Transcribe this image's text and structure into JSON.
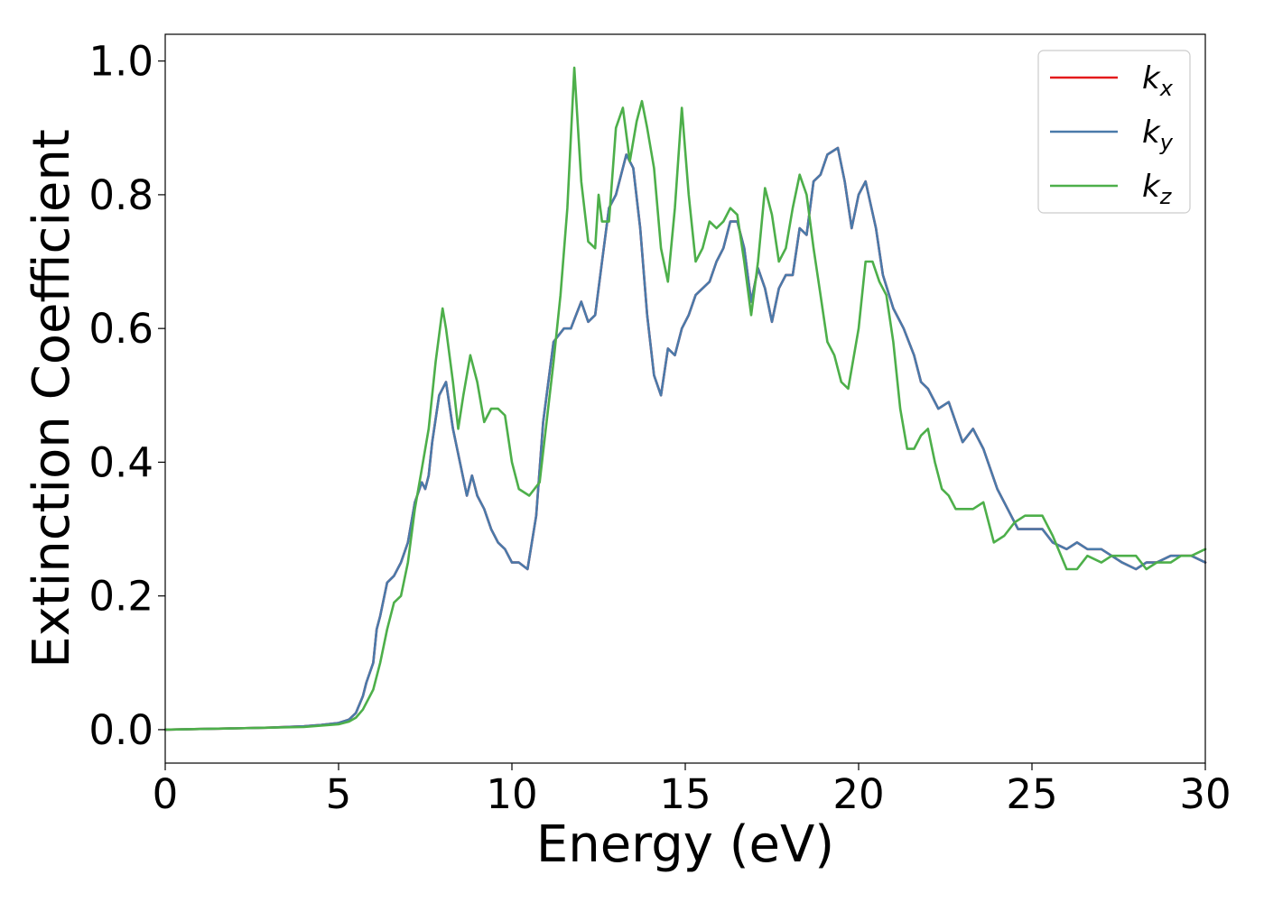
{
  "chart_data": {
    "type": "line",
    "title": "",
    "xlabel": "Energy (eV)",
    "ylabel": "Extinction Coefficient",
    "xlim": [
      0,
      30
    ],
    "ylim": [
      -0.05,
      1.04
    ],
    "xticks": [
      0,
      5,
      10,
      15,
      20,
      25,
      30
    ],
    "xtick_labels": [
      "0",
      "5",
      "10",
      "15",
      "20",
      "25",
      "30"
    ],
    "yticks": [
      0.0,
      0.2,
      0.4,
      0.6,
      0.8,
      1.0
    ],
    "ytick_labels": [
      "0.0",
      "0.2",
      "0.4",
      "0.6",
      "0.8",
      "1.0"
    ],
    "grid": false,
    "legend_position": "top-right",
    "series": [
      {
        "name": "k_x",
        "label_main": "k",
        "label_sub": "x",
        "color": "#e41a1c",
        "x": [
          0,
          1,
          2,
          3,
          4,
          4.5,
          5,
          5.3,
          5.5,
          5.7,
          5.8,
          6.0,
          6.1,
          6.2,
          6.4,
          6.6,
          6.8,
          7.0,
          7.2,
          7.4,
          7.5,
          7.6,
          7.7,
          7.9,
          8.1,
          8.3,
          8.5,
          8.7,
          8.85,
          9.0,
          9.2,
          9.4,
          9.6,
          9.8,
          10.0,
          10.2,
          10.45,
          10.7,
          10.9,
          11.2,
          11.5,
          11.7,
          11.85,
          12.0,
          12.2,
          12.4,
          12.6,
          12.8,
          13.0,
          13.3,
          13.5,
          13.7,
          13.9,
          14.1,
          14.3,
          14.5,
          14.7,
          14.9,
          15.1,
          15.3,
          15.5,
          15.7,
          15.9,
          16.1,
          16.3,
          16.5,
          16.7,
          16.9,
          17.1,
          17.3,
          17.5,
          17.7,
          17.9,
          18.1,
          18.3,
          18.5,
          18.7,
          18.9,
          19.1,
          19.4,
          19.6,
          19.8,
          20.0,
          20.2,
          20.5,
          20.7,
          21.0,
          21.3,
          21.6,
          21.8,
          22.0,
          22.3,
          22.6,
          23.0,
          23.3,
          23.6,
          24.0,
          24.3,
          24.6,
          25.0,
          25.3,
          25.6,
          26.0,
          26.3,
          26.6,
          27.0,
          27.3,
          27.6,
          28.0,
          28.3,
          28.6,
          29.0,
          29.3,
          29.6,
          30.0
        ],
        "y": [
          0,
          0.001,
          0.002,
          0.003,
          0.005,
          0.007,
          0.01,
          0.015,
          0.025,
          0.05,
          0.07,
          0.1,
          0.15,
          0.17,
          0.22,
          0.23,
          0.25,
          0.28,
          0.34,
          0.37,
          0.36,
          0.38,
          0.43,
          0.5,
          0.52,
          0.45,
          0.4,
          0.35,
          0.38,
          0.35,
          0.33,
          0.3,
          0.28,
          0.27,
          0.25,
          0.25,
          0.24,
          0.32,
          0.46,
          0.58,
          0.6,
          0.6,
          0.62,
          0.64,
          0.61,
          0.62,
          0.7,
          0.78,
          0.8,
          0.86,
          0.84,
          0.75,
          0.62,
          0.53,
          0.5,
          0.57,
          0.56,
          0.6,
          0.62,
          0.65,
          0.66,
          0.67,
          0.7,
          0.72,
          0.76,
          0.76,
          0.72,
          0.64,
          0.69,
          0.66,
          0.61,
          0.66,
          0.68,
          0.68,
          0.75,
          0.74,
          0.82,
          0.83,
          0.86,
          0.87,
          0.82,
          0.75,
          0.8,
          0.82,
          0.75,
          0.68,
          0.63,
          0.6,
          0.56,
          0.52,
          0.51,
          0.48,
          0.49,
          0.43,
          0.45,
          0.42,
          0.36,
          0.33,
          0.3,
          0.3,
          0.3,
          0.28,
          0.27,
          0.28,
          0.27,
          0.27,
          0.26,
          0.25,
          0.24,
          0.25,
          0.25,
          0.26,
          0.26,
          0.26,
          0.25
        ]
      },
      {
        "name": "k_y",
        "label_main": "k",
        "label_sub": "y",
        "color": "#4a7aaa",
        "x": [
          0,
          1,
          2,
          3,
          4,
          4.5,
          5,
          5.3,
          5.5,
          5.7,
          5.8,
          6.0,
          6.1,
          6.2,
          6.4,
          6.6,
          6.8,
          7.0,
          7.2,
          7.4,
          7.5,
          7.6,
          7.7,
          7.9,
          8.1,
          8.3,
          8.5,
          8.7,
          8.85,
          9.0,
          9.2,
          9.4,
          9.6,
          9.8,
          10.0,
          10.2,
          10.45,
          10.7,
          10.9,
          11.2,
          11.5,
          11.7,
          11.85,
          12.0,
          12.2,
          12.4,
          12.6,
          12.8,
          13.0,
          13.3,
          13.5,
          13.7,
          13.9,
          14.1,
          14.3,
          14.5,
          14.7,
          14.9,
          15.1,
          15.3,
          15.5,
          15.7,
          15.9,
          16.1,
          16.3,
          16.5,
          16.7,
          16.9,
          17.1,
          17.3,
          17.5,
          17.7,
          17.9,
          18.1,
          18.3,
          18.5,
          18.7,
          18.9,
          19.1,
          19.4,
          19.6,
          19.8,
          20.0,
          20.2,
          20.5,
          20.7,
          21.0,
          21.3,
          21.6,
          21.8,
          22.0,
          22.3,
          22.6,
          23.0,
          23.3,
          23.6,
          24.0,
          24.3,
          24.6,
          25.0,
          25.3,
          25.6,
          26.0,
          26.3,
          26.6,
          27.0,
          27.3,
          27.6,
          28.0,
          28.3,
          28.6,
          29.0,
          29.3,
          29.6,
          30.0
        ],
        "y": [
          0,
          0.001,
          0.002,
          0.003,
          0.005,
          0.007,
          0.01,
          0.015,
          0.025,
          0.05,
          0.07,
          0.1,
          0.15,
          0.17,
          0.22,
          0.23,
          0.25,
          0.28,
          0.34,
          0.37,
          0.36,
          0.38,
          0.43,
          0.5,
          0.52,
          0.45,
          0.4,
          0.35,
          0.38,
          0.35,
          0.33,
          0.3,
          0.28,
          0.27,
          0.25,
          0.25,
          0.24,
          0.32,
          0.46,
          0.58,
          0.6,
          0.6,
          0.62,
          0.64,
          0.61,
          0.62,
          0.7,
          0.78,
          0.8,
          0.86,
          0.84,
          0.75,
          0.62,
          0.53,
          0.5,
          0.57,
          0.56,
          0.6,
          0.62,
          0.65,
          0.66,
          0.67,
          0.7,
          0.72,
          0.76,
          0.76,
          0.72,
          0.64,
          0.69,
          0.66,
          0.61,
          0.66,
          0.68,
          0.68,
          0.75,
          0.74,
          0.82,
          0.83,
          0.86,
          0.87,
          0.82,
          0.75,
          0.8,
          0.82,
          0.75,
          0.68,
          0.63,
          0.6,
          0.56,
          0.52,
          0.51,
          0.48,
          0.49,
          0.43,
          0.45,
          0.42,
          0.36,
          0.33,
          0.3,
          0.3,
          0.3,
          0.28,
          0.27,
          0.28,
          0.27,
          0.27,
          0.26,
          0.25,
          0.24,
          0.25,
          0.25,
          0.26,
          0.26,
          0.26,
          0.25
        ]
      },
      {
        "name": "k_z",
        "label_main": "k",
        "label_sub": "z",
        "color": "#4daf4a",
        "x": [
          0,
          1,
          2,
          3,
          4,
          4.5,
          5,
          5.3,
          5.5,
          5.7,
          5.9,
          6.0,
          6.2,
          6.4,
          6.6,
          6.8,
          7.0,
          7.2,
          7.4,
          7.6,
          7.8,
          8.0,
          8.1,
          8.3,
          8.45,
          8.6,
          8.8,
          9.0,
          9.2,
          9.4,
          9.6,
          9.8,
          10.0,
          10.2,
          10.5,
          10.8,
          11.0,
          11.2,
          11.4,
          11.6,
          11.8,
          12.0,
          12.2,
          12.4,
          12.5,
          12.6,
          12.8,
          13.0,
          13.2,
          13.4,
          13.6,
          13.75,
          13.9,
          14.1,
          14.3,
          14.5,
          14.7,
          14.9,
          15.1,
          15.3,
          15.5,
          15.7,
          15.9,
          16.1,
          16.3,
          16.5,
          16.7,
          16.9,
          17.1,
          17.3,
          17.5,
          17.7,
          17.9,
          18.1,
          18.3,
          18.5,
          18.7,
          18.9,
          19.1,
          19.3,
          19.5,
          19.7,
          20.0,
          20.2,
          20.4,
          20.6,
          20.8,
          21.0,
          21.2,
          21.4,
          21.6,
          21.8,
          22.0,
          22.2,
          22.4,
          22.6,
          22.8,
          23.0,
          23.3,
          23.6,
          23.9,
          24.2,
          24.5,
          24.8,
          25.0,
          25.3,
          25.6,
          26.0,
          26.3,
          26.6,
          27.0,
          27.3,
          27.6,
          28.0,
          28.3,
          28.6,
          29.0,
          29.3,
          29.6,
          30.0
        ],
        "y": [
          0,
          0.001,
          0.002,
          0.003,
          0.004,
          0.006,
          0.008,
          0.012,
          0.018,
          0.03,
          0.05,
          0.06,
          0.1,
          0.15,
          0.19,
          0.2,
          0.25,
          0.33,
          0.39,
          0.45,
          0.55,
          0.63,
          0.6,
          0.52,
          0.45,
          0.5,
          0.56,
          0.52,
          0.46,
          0.48,
          0.48,
          0.47,
          0.4,
          0.36,
          0.35,
          0.37,
          0.46,
          0.55,
          0.65,
          0.78,
          0.99,
          0.82,
          0.73,
          0.72,
          0.8,
          0.76,
          0.76,
          0.9,
          0.93,
          0.85,
          0.91,
          0.94,
          0.9,
          0.84,
          0.72,
          0.67,
          0.78,
          0.93,
          0.8,
          0.7,
          0.72,
          0.76,
          0.75,
          0.76,
          0.78,
          0.77,
          0.7,
          0.62,
          0.7,
          0.81,
          0.77,
          0.7,
          0.72,
          0.78,
          0.83,
          0.8,
          0.72,
          0.65,
          0.58,
          0.56,
          0.52,
          0.51,
          0.6,
          0.7,
          0.7,
          0.67,
          0.65,
          0.58,
          0.48,
          0.42,
          0.42,
          0.44,
          0.45,
          0.4,
          0.36,
          0.35,
          0.33,
          0.33,
          0.33,
          0.34,
          0.28,
          0.29,
          0.31,
          0.32,
          0.32,
          0.32,
          0.29,
          0.24,
          0.24,
          0.26,
          0.25,
          0.26,
          0.26,
          0.26,
          0.24,
          0.25,
          0.25,
          0.26,
          0.26,
          0.27
        ]
      }
    ]
  }
}
